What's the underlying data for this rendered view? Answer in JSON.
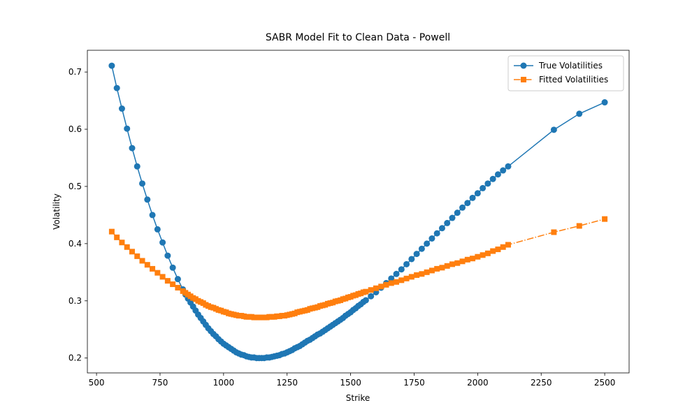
{
  "chart_data": {
    "type": "line",
    "title": "SABR Model Fit to Clean Data - Powell",
    "x_label": "Strike",
    "y_label": "Volatility",
    "x": [
      560,
      580,
      600,
      620,
      640,
      660,
      680,
      700,
      720,
      740,
      760,
      780,
      800,
      820,
      840,
      850,
      860,
      870,
      880,
      890,
      900,
      910,
      920,
      930,
      940,
      950,
      960,
      970,
      980,
      990,
      1000,
      1010,
      1020,
      1030,
      1040,
      1050,
      1060,
      1070,
      1080,
      1090,
      1100,
      1110,
      1120,
      1130,
      1140,
      1150,
      1160,
      1170,
      1180,
      1190,
      1200,
      1210,
      1220,
      1230,
      1240,
      1250,
      1260,
      1270,
      1280,
      1290,
      1300,
      1310,
      1320,
      1330,
      1340,
      1350,
      1360,
      1370,
      1380,
      1390,
      1400,
      1410,
      1420,
      1430,
      1440,
      1450,
      1460,
      1470,
      1480,
      1490,
      1500,
      1510,
      1520,
      1530,
      1540,
      1550,
      1560,
      1580,
      1600,
      1620,
      1640,
      1660,
      1680,
      1700,
      1720,
      1740,
      1760,
      1780,
      1800,
      1820,
      1840,
      1860,
      1880,
      1900,
      1920,
      1940,
      1960,
      1980,
      2000,
      2020,
      2040,
      2060,
      2080,
      2100,
      2120,
      2300,
      2400,
      2500
    ],
    "series": [
      {
        "name": "True Volatilities",
        "color": "#1f77b4",
        "marker": "circle",
        "linestyle": "solid",
        "values": [
          0.711,
          0.672,
          0.636,
          0.601,
          0.567,
          0.535,
          0.505,
          0.477,
          0.45,
          0.425,
          0.402,
          0.379,
          0.358,
          0.338,
          0.32,
          0.311,
          0.304,
          0.297,
          0.29,
          0.283,
          0.276,
          0.27,
          0.264,
          0.258,
          0.252,
          0.247,
          0.242,
          0.238,
          0.233,
          0.229,
          0.225,
          0.222,
          0.219,
          0.216,
          0.213,
          0.21,
          0.208,
          0.206,
          0.205,
          0.203,
          0.202,
          0.201,
          0.201,
          0.2,
          0.2,
          0.2,
          0.2,
          0.201,
          0.201,
          0.202,
          0.203,
          0.204,
          0.205,
          0.207,
          0.208,
          0.21,
          0.212,
          0.214,
          0.217,
          0.219,
          0.221,
          0.224,
          0.227,
          0.23,
          0.232,
          0.235,
          0.238,
          0.241,
          0.243,
          0.246,
          0.249,
          0.252,
          0.255,
          0.258,
          0.261,
          0.264,
          0.267,
          0.27,
          0.274,
          0.277,
          0.28,
          0.284,
          0.287,
          0.291,
          0.294,
          0.298,
          0.301,
          0.308,
          0.315,
          0.323,
          0.331,
          0.339,
          0.347,
          0.355,
          0.364,
          0.373,
          0.382,
          0.391,
          0.4,
          0.409,
          0.418,
          0.427,
          0.436,
          0.445,
          0.454,
          0.463,
          0.471,
          0.48,
          0.488,
          0.497,
          0.505,
          0.513,
          0.521,
          0.528,
          0.535,
          0.599,
          0.627,
          0.647
        ]
      },
      {
        "name": "Fitted Volatilities",
        "color": "#ff7f0e",
        "marker": "square",
        "linestyle": "dashdot",
        "values": [
          0.421,
          0.411,
          0.402,
          0.394,
          0.386,
          0.378,
          0.37,
          0.363,
          0.356,
          0.349,
          0.342,
          0.335,
          0.329,
          0.323,
          0.317,
          0.314,
          0.311,
          0.308,
          0.305,
          0.303,
          0.3,
          0.298,
          0.296,
          0.293,
          0.291,
          0.289,
          0.288,
          0.286,
          0.284,
          0.283,
          0.281,
          0.28,
          0.278,
          0.277,
          0.276,
          0.275,
          0.274,
          0.274,
          0.273,
          0.272,
          0.272,
          0.272,
          0.271,
          0.271,
          0.271,
          0.271,
          0.271,
          0.271,
          0.272,
          0.272,
          0.272,
          0.273,
          0.273,
          0.274,
          0.274,
          0.275,
          0.276,
          0.277,
          0.278,
          0.28,
          0.281,
          0.282,
          0.283,
          0.284,
          0.286,
          0.287,
          0.288,
          0.289,
          0.291,
          0.292,
          0.293,
          0.295,
          0.296,
          0.297,
          0.299,
          0.3,
          0.301,
          0.303,
          0.304,
          0.306,
          0.307,
          0.309,
          0.31,
          0.312,
          0.313,
          0.315,
          0.316,
          0.319,
          0.322,
          0.325,
          0.328,
          0.331,
          0.333,
          0.336,
          0.339,
          0.342,
          0.345,
          0.347,
          0.35,
          0.353,
          0.356,
          0.358,
          0.361,
          0.364,
          0.366,
          0.369,
          0.372,
          0.374,
          0.377,
          0.38,
          0.383,
          0.387,
          0.39,
          0.394,
          0.398,
          0.42,
          0.431,
          0.443
        ]
      }
    ],
    "xlim": [
      464,
      2596
    ],
    "xticks": [
      500,
      750,
      1000,
      1250,
      1500,
      1750,
      2000,
      2250,
      2500
    ],
    "ylim": [
      0.174,
      0.738
    ],
    "yticks": [
      0.2,
      0.3,
      0.4,
      0.5,
      0.6,
      0.7
    ],
    "legend": "upper right",
    "grid": false
  }
}
